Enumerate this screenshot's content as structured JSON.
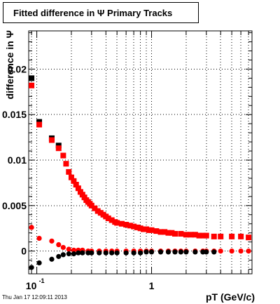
{
  "title": "Fitted difference in  Ψ   Primary Tracks",
  "footer": "Thu Jan 17 12:09:11 2013",
  "colors": {
    "series_black": "#000000",
    "series_red": "#ff0000",
    "grid": "#000000",
    "frame": "#000000"
  },
  "chart_data": {
    "type": "scatter",
    "title": "Fitted difference in  Ψ   Primary Tracks",
    "xlabel": "pT (GeV/c)",
    "ylabel": "difference in Ψ",
    "xscale": "log",
    "xlim": [
      0.085,
      7.5
    ],
    "ylim": [
      -0.0025,
      0.0242
    ],
    "grid": true,
    "x_ticks": [
      {
        "value": 0.1,
        "label": "10^-1"
      },
      {
        "value": 1,
        "label": "1"
      }
    ],
    "y_ticks": [
      {
        "value": 0,
        "label": "0"
      },
      {
        "value": 0.005,
        "label": "0.005"
      },
      {
        "value": 0.01,
        "label": "0.01"
      },
      {
        "value": 0.015,
        "label": "0.015"
      },
      {
        "value": 0.02,
        "label": "0.02"
      }
    ],
    "series": [
      {
        "color": "#000000",
        "marker": "square",
        "x": [
          0.09,
          0.105,
          0.135,
          0.155
        ],
        "y": [
          0.019,
          0.0142,
          0.0124,
          0.0116
        ]
      },
      {
        "color": "#ff0000",
        "marker": "square",
        "x": [
          0.09,
          0.105,
          0.135,
          0.155,
          0.17,
          0.18,
          0.19,
          0.2,
          0.21,
          0.22,
          0.23,
          0.24,
          0.25,
          0.26,
          0.27,
          0.28,
          0.29,
          0.3,
          0.32,
          0.34,
          0.36,
          0.38,
          0.4,
          0.42,
          0.45,
          0.48,
          0.5,
          0.55,
          0.6,
          0.65,
          0.7,
          0.75,
          0.8,
          0.85,
          0.9,
          0.95,
          1.0,
          1.1,
          1.2,
          1.3,
          1.4,
          1.5,
          1.6,
          1.8,
          2.0,
          2.2,
          2.4,
          2.6,
          2.8,
          3.0,
          3.5,
          4.0,
          5.0,
          6.0,
          7.0
        ],
        "y": [
          0.0182,
          0.0139,
          0.0122,
          0.0113,
          0.0105,
          0.0096,
          0.0087,
          0.0081,
          0.0077,
          0.0073,
          0.0069,
          0.0065,
          0.0062,
          0.0059,
          0.0056,
          0.0054,
          0.0052,
          0.005,
          0.0047,
          0.0044,
          0.0042,
          0.004,
          0.0038,
          0.0036,
          0.0034,
          0.0032,
          0.0031,
          0.003,
          0.0029,
          0.0028,
          0.0027,
          0.0026,
          0.0025,
          0.0024,
          0.0024,
          0.0023,
          0.0023,
          0.0022,
          0.0021,
          0.0021,
          0.002,
          0.002,
          0.0019,
          0.0019,
          0.0018,
          0.0018,
          0.0018,
          0.0017,
          0.0017,
          0.0017,
          0.0016,
          0.0016,
          0.0016,
          0.0016,
          0.0015
        ]
      },
      {
        "color": "#ff0000",
        "marker": "circle",
        "x": [
          0.09,
          0.105,
          0.135,
          0.155,
          0.17,
          0.19,
          0.21,
          0.23,
          0.25,
          0.28,
          0.3,
          0.35,
          0.4,
          0.45,
          0.5,
          0.6,
          0.7,
          0.8,
          0.9,
          1.0,
          1.2,
          1.4,
          1.6,
          1.8,
          2.0,
          2.4,
          2.8,
          3.0,
          3.5,
          4.0,
          5.0,
          6.0,
          7.0
        ],
        "y": [
          0.0026,
          0.0014,
          0.0011,
          0.0007,
          0.0004,
          0.0002,
          0.0001,
          0.0001,
          0.0001,
          0.0,
          0.0,
          0.0,
          0.0,
          0.0,
          0.0,
          0.0,
          0.0,
          0.0,
          0.0,
          0.0,
          0.0,
          0.0,
          0.0,
          0.0,
          0.0,
          0.0,
          0.0,
          0.0,
          0.0,
          0.0,
          0.0,
          0.0,
          0.0
        ]
      },
      {
        "color": "#000000",
        "marker": "circle",
        "x": [
          0.09,
          0.105,
          0.135,
          0.155,
          0.17,
          0.19,
          0.21,
          0.23,
          0.25,
          0.28,
          0.3,
          0.35,
          0.4,
          0.45,
          0.5,
          0.6,
          0.7,
          0.8,
          0.9,
          1.0,
          1.2,
          1.4,
          1.6,
          1.8,
          2.0,
          2.4,
          2.8,
          3.0,
          3.5
        ],
        "y": [
          -0.0018,
          -0.0013,
          -0.0009,
          -0.0006,
          -0.0004,
          -0.0003,
          -0.0003,
          -0.0002,
          -0.0002,
          -0.0002,
          -0.0002,
          -0.0002,
          -0.0002,
          -0.0002,
          -0.0002,
          -0.0002,
          -0.0002,
          -0.0002,
          -0.0001,
          -0.0001,
          -0.0001,
          -0.0001,
          -0.0001,
          -0.0001,
          -0.0001,
          -0.0001,
          -0.0001,
          -0.0001,
          -0.0001
        ]
      }
    ]
  }
}
